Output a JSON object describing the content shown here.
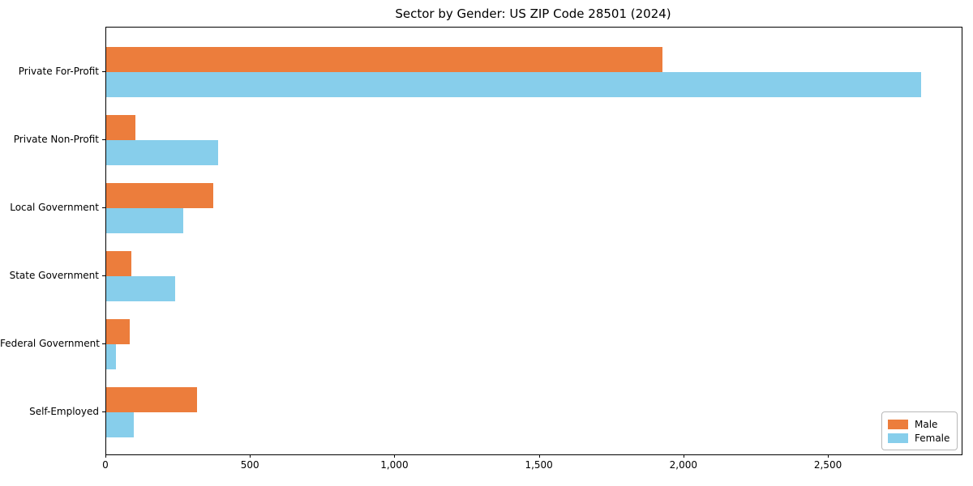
{
  "chart_data": {
    "type": "bar",
    "orientation": "horizontal",
    "title": "Sector by Gender: US ZIP Code 28501 (2024)",
    "categories": [
      "Private For-Profit",
      "Private Non-Profit",
      "Local Government",
      "State Government",
      "Federal Government",
      "Self-Employed"
    ],
    "series": [
      {
        "name": "Male",
        "color": "#ec7d3c",
        "values": [
          1925,
          100,
          370,
          87,
          82,
          315
        ]
      },
      {
        "name": "Female",
        "color": "#87ceeb",
        "values": [
          2820,
          388,
          266,
          238,
          33,
          95
        ]
      }
    ],
    "xlim": [
      0,
      2960
    ],
    "xticks": [
      0,
      500,
      1000,
      1500,
      2000,
      2500
    ],
    "xtick_labels": [
      "0",
      "500",
      "1,000",
      "1,500",
      "2,000",
      "2,500"
    ],
    "grid": false,
    "legend_position": "lower right",
    "legend_labels": [
      "Male",
      "Female"
    ]
  }
}
